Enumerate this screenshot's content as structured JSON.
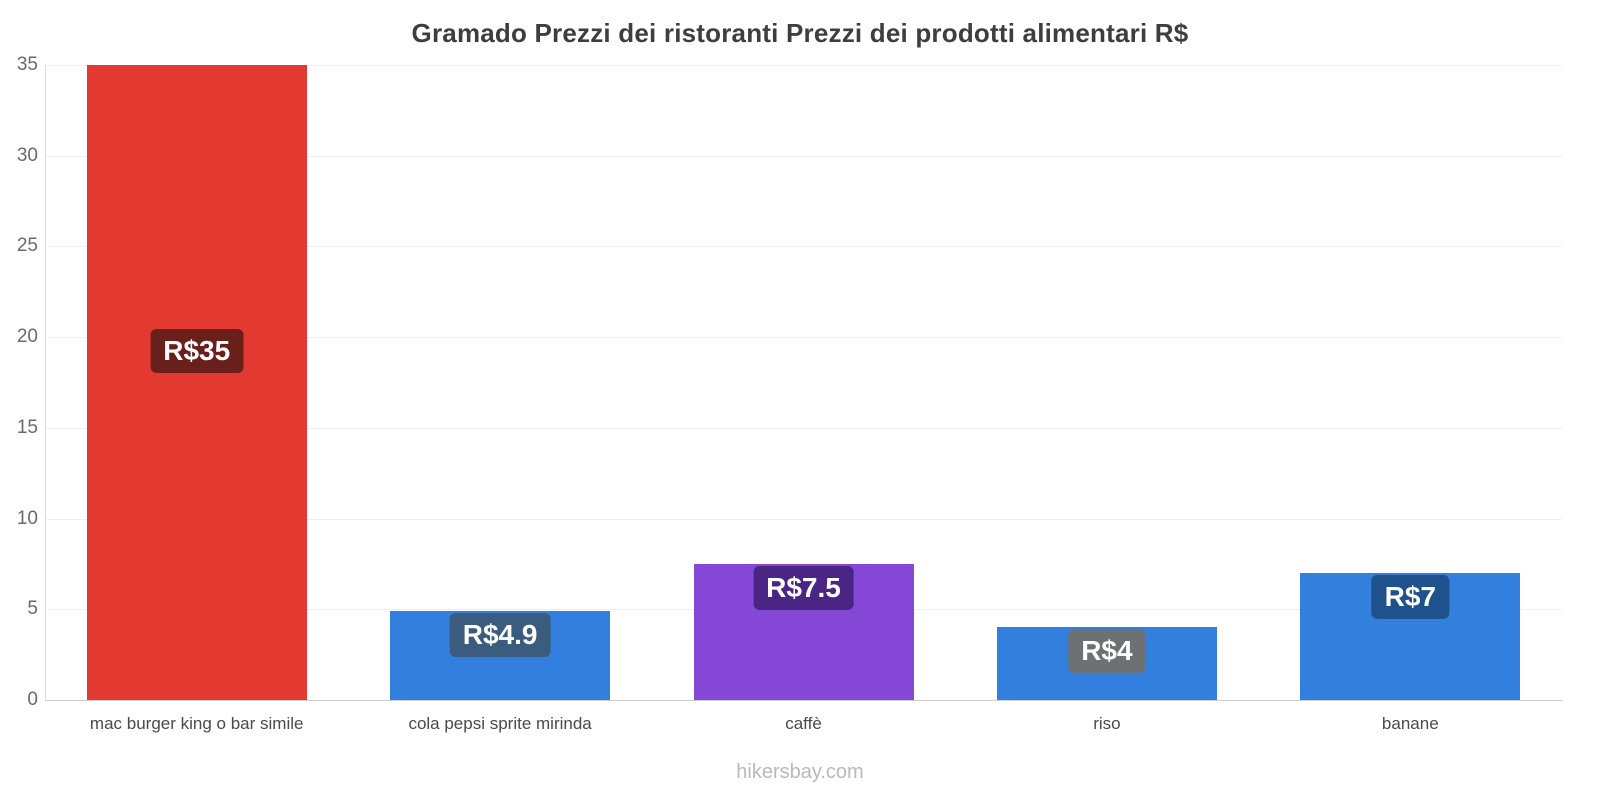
{
  "title": "Gramado Prezzi dei ristoranti Prezzi dei prodotti alimentari R$",
  "footer": "hikersbay.com",
  "chart_data": {
    "type": "bar",
    "title": "Gramado Prezzi dei ristoranti Prezzi dei prodotti alimentari R$",
    "currency": "R$",
    "categories": [
      "mac burger king o bar simile",
      "cola pepsi sprite mirinda",
      "caffè",
      "riso",
      "banane"
    ],
    "values": [
      35,
      4.9,
      7.5,
      4,
      7
    ],
    "value_labels": [
      "R$35",
      "R$4.9",
      "R$7.5",
      "R$4",
      "R$7"
    ],
    "bar_colors": [
      "#e23a30",
      "#337fdd",
      "#8447d6",
      "#337fdd",
      "#337fdd"
    ],
    "value_label_bg": [
      "#69201b",
      "#3c5c7e",
      "#4a2584",
      "#6e7174",
      "#1f518c"
    ],
    "xlabel": "",
    "ylabel": "",
    "ylim": [
      0,
      35
    ],
    "yticks": [
      0,
      5,
      10,
      15,
      20,
      25,
      30,
      35
    ],
    "legend": "none",
    "grid": "horizontal-faint"
  }
}
